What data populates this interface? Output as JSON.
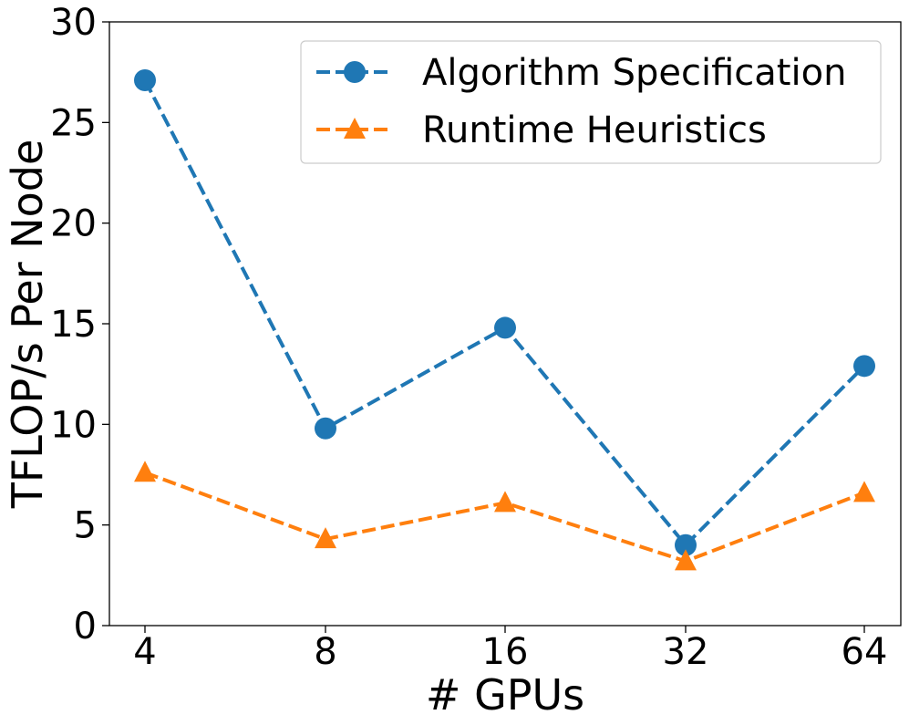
{
  "chart_data": {
    "type": "line",
    "x": [
      "4",
      "8",
      "16",
      "32",
      "64"
    ],
    "xlabel": "# GPUs",
    "ylabel": "TFLOP/s Per Node",
    "ylim": [
      0,
      30
    ],
    "yticks": [
      "0",
      "5",
      "10",
      "15",
      "20",
      "25",
      "30"
    ],
    "legend_position": "top-right",
    "grid": false,
    "series": [
      {
        "name": "Algorithm Specification",
        "values": [
          27.1,
          9.8,
          14.8,
          4.0,
          12.9
        ],
        "color": "#1f77b4",
        "marker": "circle",
        "linestyle": "dashed"
      },
      {
        "name": "Runtime Heuristics",
        "values": [
          7.6,
          4.3,
          6.1,
          3.2,
          6.6
        ],
        "color": "#ff7f0e",
        "marker": "triangle",
        "linestyle": "dashed"
      }
    ]
  }
}
